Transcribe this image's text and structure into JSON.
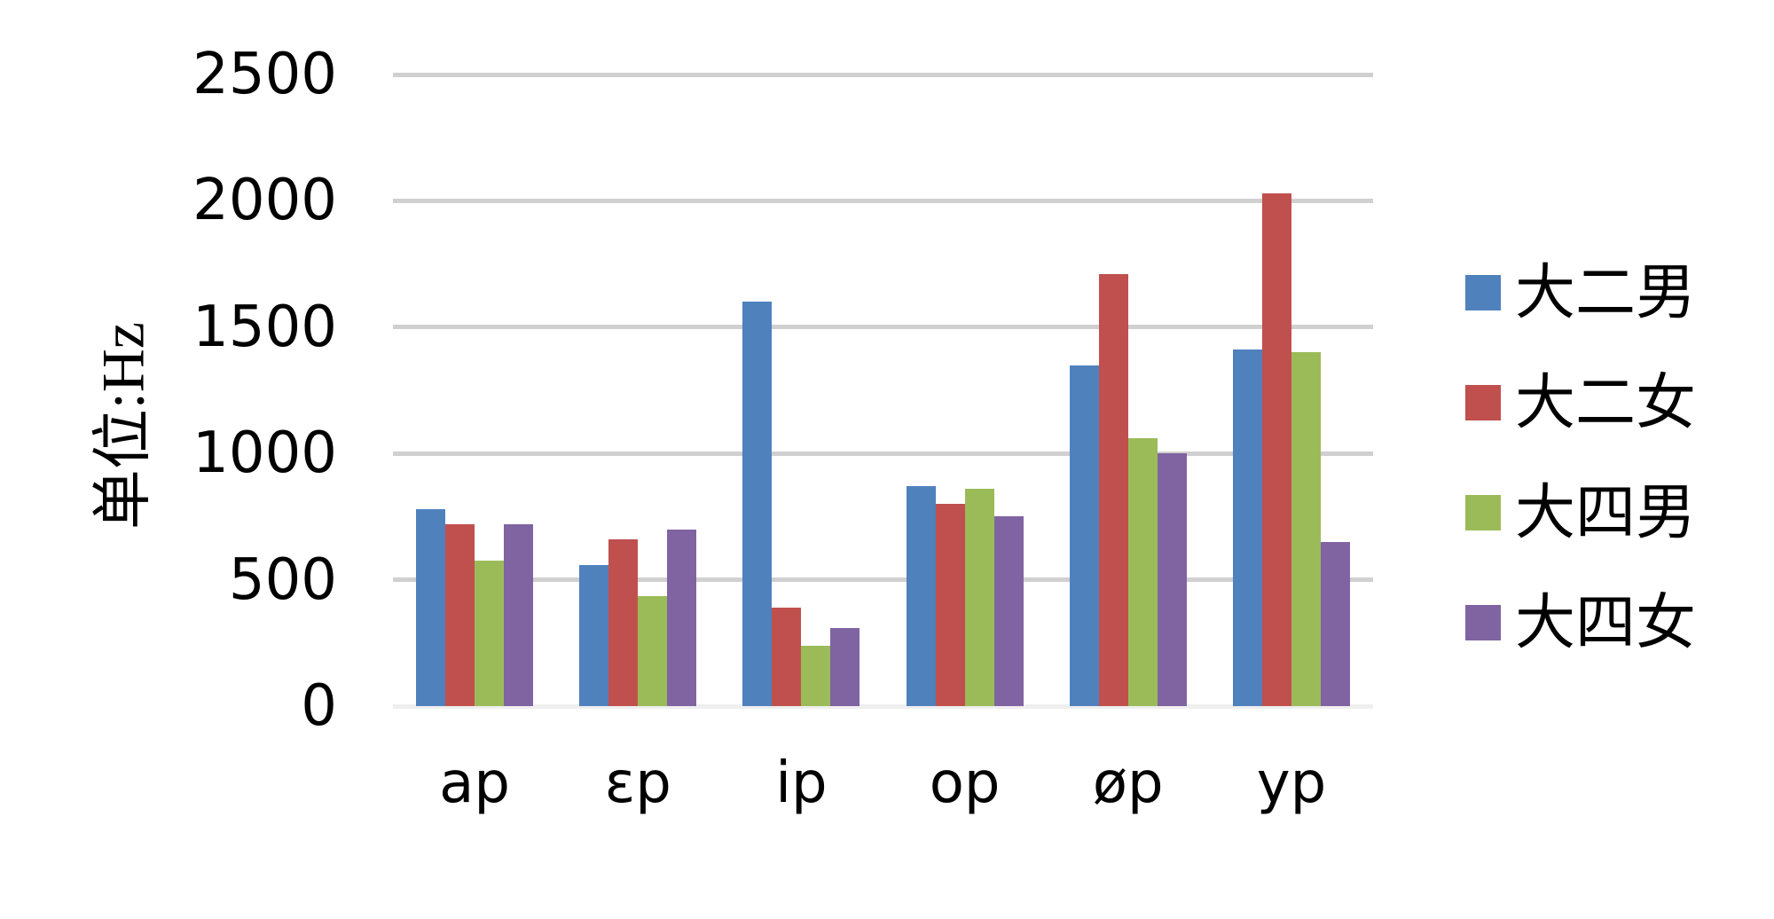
{
  "chart_data": {
    "type": "bar",
    "title": "",
    "xlabel": "",
    "ylabel": "单位:Hz",
    "categories": [
      "ap",
      "εp",
      "ip",
      "op",
      "øp",
      "yp"
    ],
    "series": [
      {
        "name": "大二男",
        "color": "#4F81BD",
        "values": [
          780,
          560,
          1600,
          870,
          1350,
          1410
        ]
      },
      {
        "name": "大二女",
        "color": "#C0504D",
        "values": [
          720,
          660,
          390,
          800,
          1710,
          2030
        ]
      },
      {
        "name": "大四男",
        "color": "#9BBB59",
        "values": [
          575,
          435,
          240,
          860,
          1060,
          1400
        ]
      },
      {
        "name": "大四女",
        "color": "#8064A2",
        "values": [
          720,
          700,
          310,
          750,
          1000,
          650
        ]
      }
    ],
    "ylim": [
      0,
      2500
    ],
    "yticks": [
      0,
      500,
      1000,
      1500,
      2000,
      2500
    ],
    "grid": true,
    "legend_position": "right",
    "gridline_color": "#D0D0D0",
    "baseline_color": "#EFEFEF",
    "text_color": "#000000",
    "background_color": "#FFFFFF"
  }
}
